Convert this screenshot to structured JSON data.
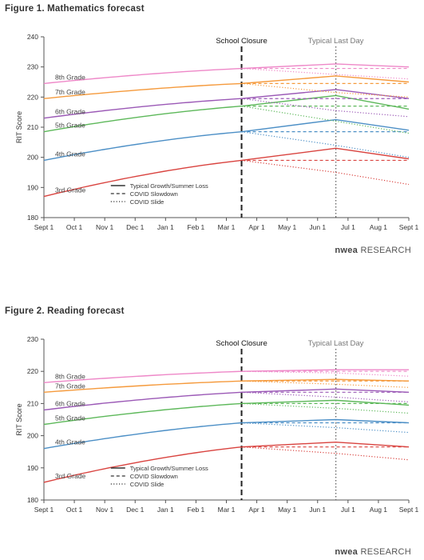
{
  "figure1": {
    "title": "Figure 1. Mathematics forecast"
  },
  "figure2": {
    "title": "Figure 2. Reading forecast"
  },
  "logo": {
    "brand": "nwea",
    "suffix": "RESEARCH"
  },
  "colors": {
    "3rd Grade": "#d9433f",
    "4th Grade": "#4c8fc6",
    "5th Grade": "#5db85a",
    "6th Grade": "#9b59b6",
    "7th Grade": "#f59a3c",
    "8th Grade": "#ee88c8"
  },
  "chart_data": [
    {
      "type": "line",
      "title": "Figure 1. Mathematics forecast",
      "ylabel": "RIT Score",
      "ylim": [
        180,
        240
      ],
      "yticks": [
        180,
        190,
        200,
        210,
        220,
        230,
        240
      ],
      "x_tick_labels": [
        "Sept 1",
        "Oct 1",
        "Nov 1",
        "Dec 1",
        "Jan 1",
        "Feb 1",
        "Mar 1",
        "Apr 1",
        "May 1",
        "Jun 1",
        "Jul 1",
        "Aug 1",
        "Sept 1"
      ],
      "x_range_months": [
        0,
        12
      ],
      "annotations": [
        {
          "label": "School Closure",
          "x_month": 6.5,
          "style": "dashed"
        },
        {
          "label": "Typical Last Day",
          "x_month": 9.6,
          "style": "dotted"
        }
      ],
      "legend": [
        "Typical Growth/Summer Loss",
        "COVID Slowdown",
        "COVID Slide"
      ],
      "legend_position": "bottom-left",
      "series": [
        {
          "name": "3rd Grade",
          "start": 187,
          "closure": 199,
          "peak": 203,
          "end": 199.5,
          "slowdown_end": 199,
          "slide_peak": 195,
          "slide_end": 191
        },
        {
          "name": "4th Grade",
          "start": 199,
          "closure": 208.5,
          "peak": 212.5,
          "end": 209,
          "slowdown_end": 208.5,
          "slide_peak": 204,
          "slide_end": 200
        },
        {
          "name": "5th Grade",
          "start": 208.5,
          "closure": 217,
          "peak": 220.5,
          "end": 216,
          "slowdown_end": 217,
          "slide_peak": 212,
          "slide_end": 208
        },
        {
          "name": "6th Grade",
          "start": 213,
          "closure": 219.5,
          "peak": 222.5,
          "end": 219.5,
          "slowdown_end": 219.5,
          "slide_peak": 215.5,
          "slide_end": 213.5
        },
        {
          "name": "7th Grade",
          "start": 219.5,
          "closure": 224.5,
          "peak": 227,
          "end": 225,
          "slowdown_end": 224.5,
          "slide_peak": 221.5,
          "slide_end": 220
        },
        {
          "name": "8th Grade",
          "start": 224.5,
          "closure": 229.5,
          "peak": 231,
          "end": 230,
          "slowdown_end": 229.5,
          "slide_peak": 227.5,
          "slide_end": 226
        }
      ]
    },
    {
      "type": "line",
      "title": "Figure 2. Reading forecast",
      "ylabel": "RIT Score",
      "ylim": [
        180,
        230
      ],
      "yticks": [
        180,
        190,
        200,
        210,
        220,
        230
      ],
      "x_tick_labels": [
        "Sept 1",
        "Oct 1",
        "Nov 1",
        "Dec 1",
        "Jan 1",
        "Feb 1",
        "Mar 1",
        "Apr 1",
        "May 1",
        "Jun 1",
        "Jul 1",
        "Aug 1",
        "Sept 1"
      ],
      "x_range_months": [
        0,
        12
      ],
      "annotations": [
        {
          "label": "School Closure",
          "x_month": 6.5,
          "style": "dashed"
        },
        {
          "label": "Typical Last Day",
          "x_month": 9.6,
          "style": "dotted"
        }
      ],
      "legend": [
        "Typical Growth/Summer Loss",
        "COVID Slowdown",
        "COVID Slide"
      ],
      "legend_position": "bottom-left",
      "series": [
        {
          "name": "3rd Grade",
          "start": 185.5,
          "closure": 196.5,
          "peak": 198,
          "end": 196.5,
          "slowdown_end": 196.5,
          "slide_peak": 194.5,
          "slide_end": 192.5
        },
        {
          "name": "4th Grade",
          "start": 196,
          "closure": 204,
          "peak": 205,
          "end": 204,
          "slowdown_end": 204,
          "slide_peak": 202.5,
          "slide_end": 201
        },
        {
          "name": "5th Grade",
          "start": 203.5,
          "closure": 210,
          "peak": 211,
          "end": 209.5,
          "slowdown_end": 210,
          "slide_peak": 208.5,
          "slide_end": 207
        },
        {
          "name": "6th Grade",
          "start": 208,
          "closure": 213.5,
          "peak": 214.5,
          "end": 213.5,
          "slowdown_end": 213.5,
          "slide_peak": 212,
          "slide_end": 210.5
        },
        {
          "name": "7th Grade",
          "start": 213.5,
          "closure": 217,
          "peak": 217.5,
          "end": 217,
          "slowdown_end": 217,
          "slide_peak": 216,
          "slide_end": 215
        },
        {
          "name": "8th Grade",
          "start": 216.5,
          "closure": 220,
          "peak": 220.5,
          "end": 220.5,
          "slowdown_end": 220,
          "slide_peak": 219.5,
          "slide_end": 218.5
        }
      ]
    }
  ]
}
